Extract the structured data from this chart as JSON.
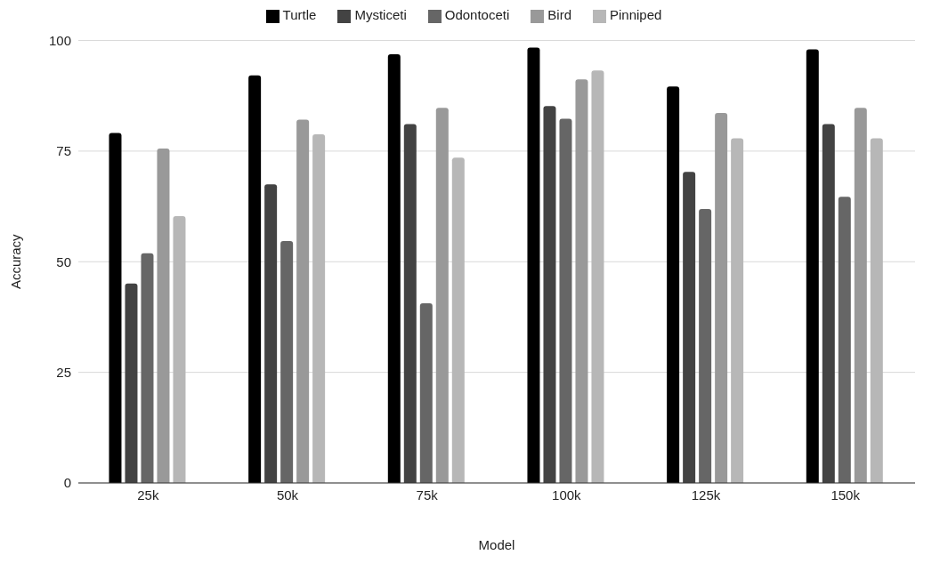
{
  "chart_data": {
    "type": "bar",
    "xlabel": "Model",
    "ylabel": "Accuracy",
    "categories": [
      "25k",
      "50k",
      "75k",
      "100k",
      "125k",
      "150k"
    ],
    "series": [
      {
        "name": "Turtle",
        "color": "#000000",
        "values": [
          79.1,
          92.1,
          96.9,
          98.4,
          89.6,
          98.0
        ]
      },
      {
        "name": "Mysticeti",
        "color": "#434343",
        "values": [
          45.1,
          67.5,
          81.1,
          85.2,
          70.3,
          81.1
        ]
      },
      {
        "name": "Odontoceti",
        "color": "#666666",
        "values": [
          51.9,
          54.7,
          40.6,
          82.3,
          61.9,
          64.7
        ]
      },
      {
        "name": "Bird",
        "color": "#999999",
        "values": [
          75.6,
          82.1,
          84.8,
          91.2,
          83.6,
          84.8
        ]
      },
      {
        "name": "Pinniped",
        "color": "#b7b7b7",
        "values": [
          60.3,
          78.8,
          73.5,
          93.2,
          77.9,
          77.9
        ]
      }
    ],
    "ylim": [
      0,
      100
    ],
    "yticks": [
      0,
      25,
      50,
      75,
      100
    ],
    "grid": "y",
    "legend": "top"
  }
}
